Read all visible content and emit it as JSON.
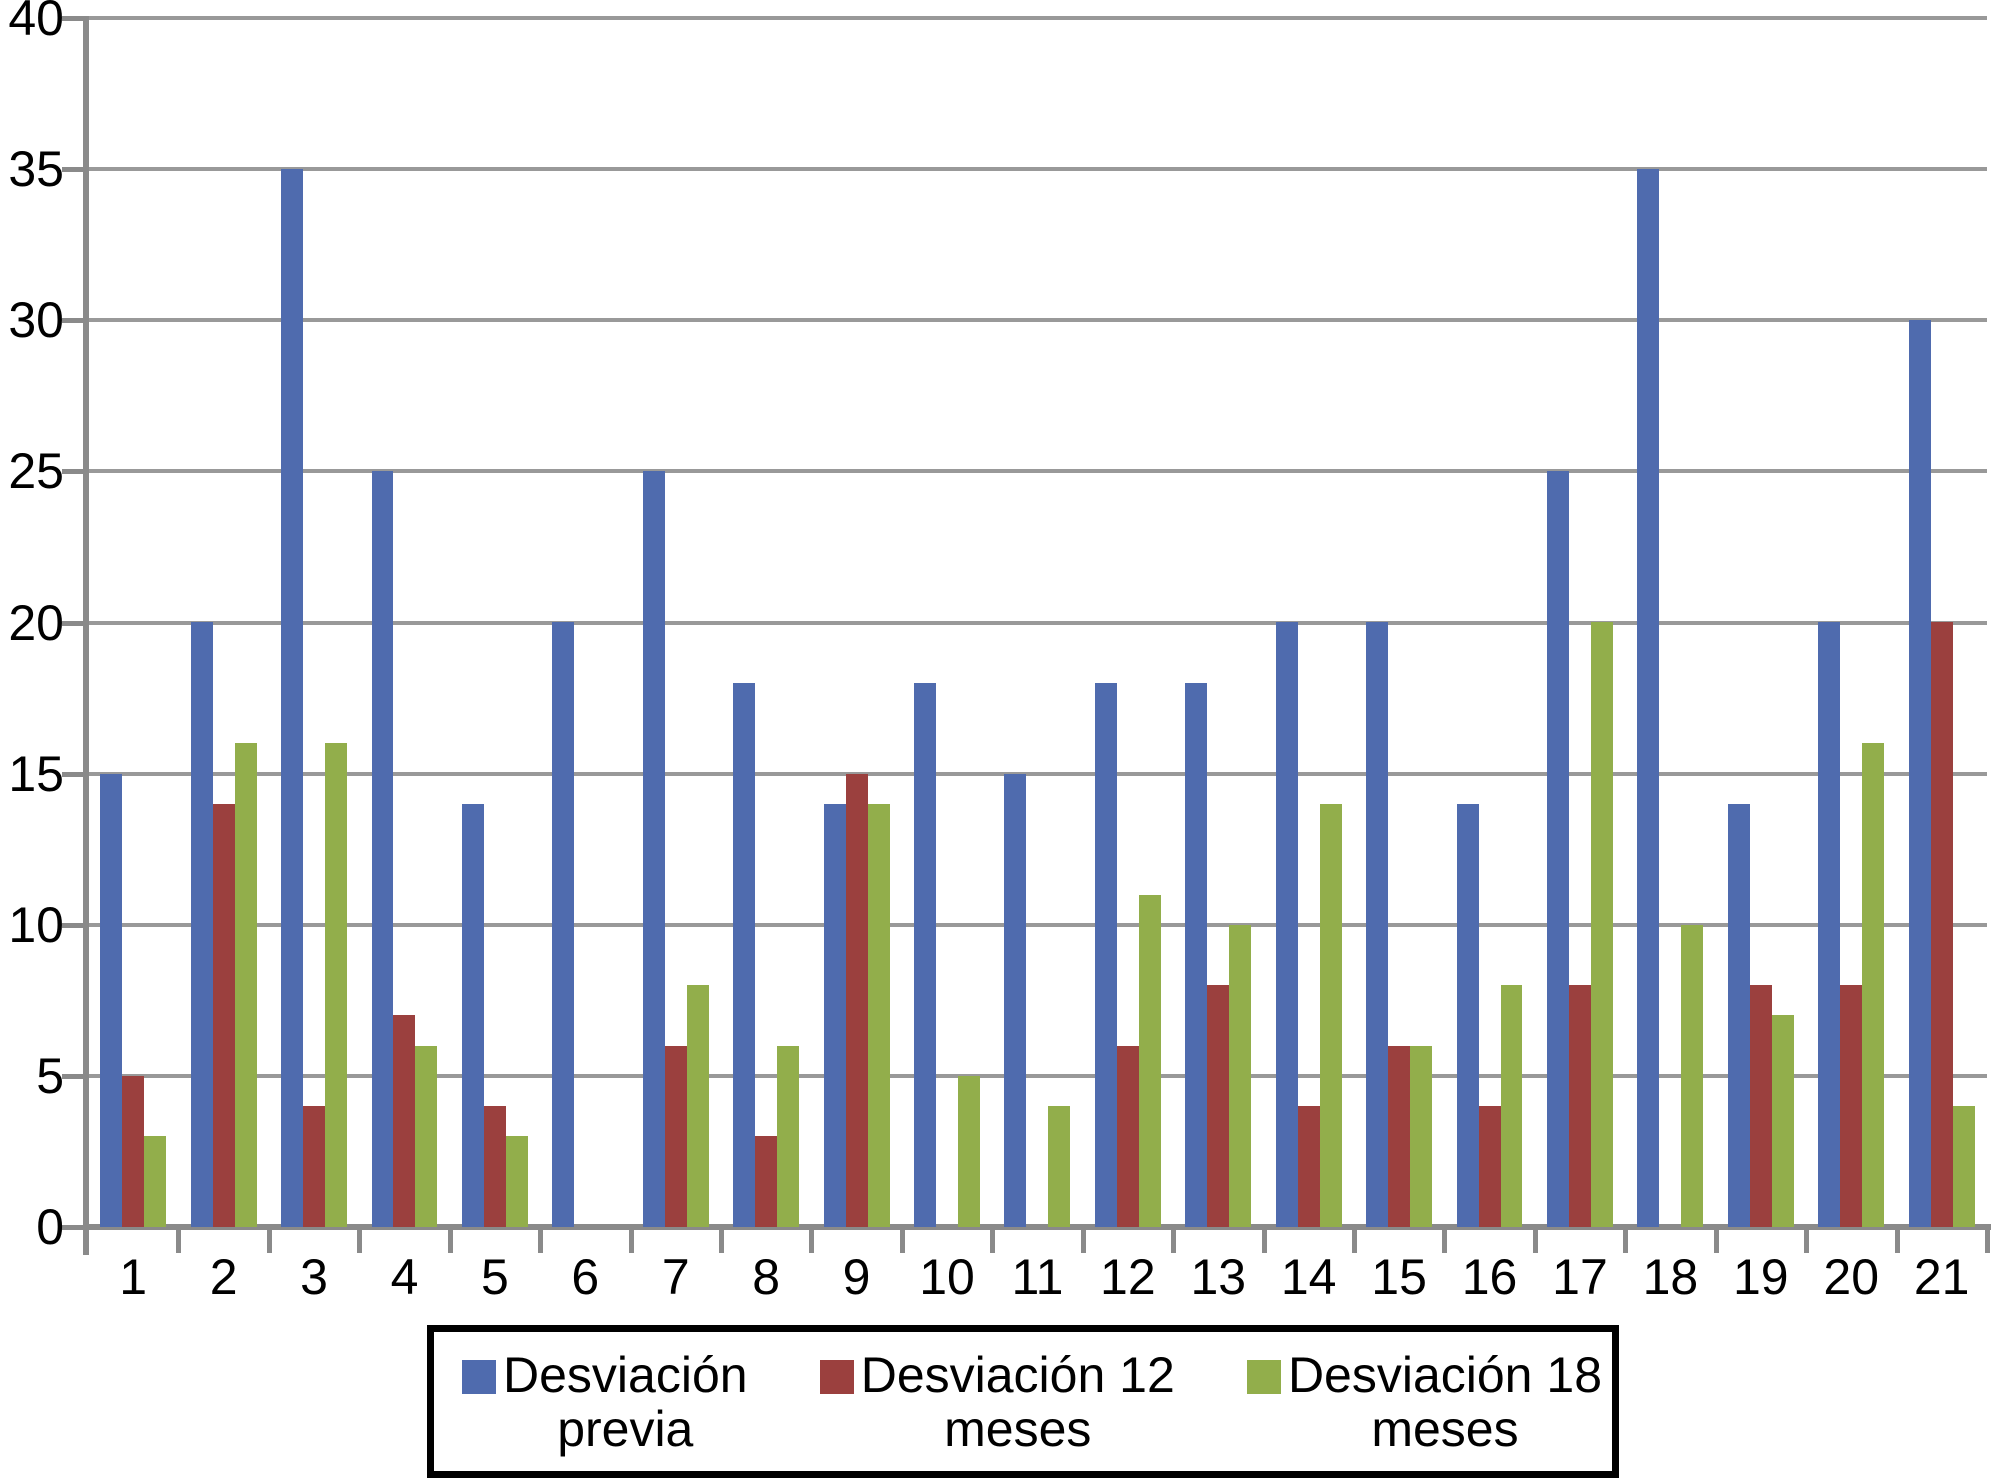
{
  "chart_data": {
    "type": "bar",
    "title": "",
    "xlabel": "",
    "ylabel": "",
    "categories": [
      "1",
      "2",
      "3",
      "4",
      "5",
      "6",
      "7",
      "8",
      "9",
      "10",
      "11",
      "12",
      "13",
      "14",
      "15",
      "16",
      "17",
      "18",
      "19",
      "20",
      "21"
    ],
    "series": [
      {
        "name": "Desviación previa",
        "color": "#4F6BAE",
        "values": [
          15,
          20,
          35,
          25,
          14,
          20,
          25,
          18,
          14,
          18,
          15,
          18,
          18,
          20,
          20,
          14,
          25,
          35,
          14,
          20,
          30
        ]
      },
      {
        "name": "Desviación 12 meses",
        "color": "#9B403E",
        "values": [
          5,
          14,
          4,
          7,
          4,
          0,
          6,
          3,
          15,
          0,
          0,
          6,
          8,
          4,
          6,
          4,
          8,
          0,
          8,
          8,
          20
        ]
      },
      {
        "name": "Desviación 18 meses",
        "color": "#92AE4B",
        "values": [
          3,
          16,
          16,
          6,
          3,
          0,
          8,
          6,
          14,
          5,
          4,
          11,
          10,
          14,
          6,
          8,
          20,
          10,
          7,
          16,
          4
        ]
      }
    ],
    "ylim": [
      0,
      40
    ],
    "yticks": [
      0,
      5,
      10,
      15,
      20,
      25,
      30,
      35,
      40
    ],
    "grid": "horizontal-only",
    "legend_position": "bottom-center",
    "legend_items": [
      {
        "line1": "Desviación",
        "line2": "previa"
      },
      {
        "line1": "Desviación 12",
        "line2": "meses"
      },
      {
        "line1": "Desviación 18",
        "line2": "meses"
      }
    ]
  },
  "colors": {
    "background": "#FFFFFF",
    "gridline": "#999999",
    "axis": "#8A8A8A",
    "text": "#000000",
    "legend_border": "#000000",
    "series_blue": "#4F6BAE",
    "series_red": "#9B403E",
    "series_green": "#92AE4B"
  }
}
